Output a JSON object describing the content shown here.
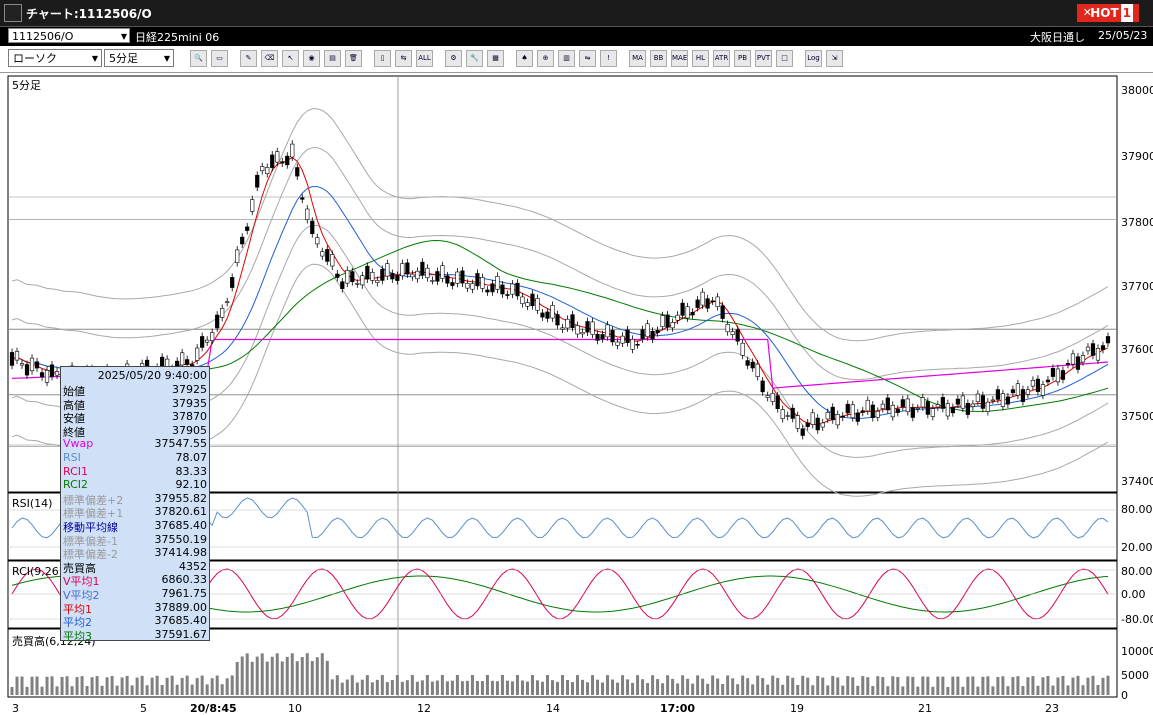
{
  "window": {
    "title": "チャート:1112506/O",
    "hot_label": "HOT",
    "hot_number": "1"
  },
  "infobar": {
    "symbol": "1112506/O",
    "instrument": "日経225mini 06",
    "exchange": "大阪日通し",
    "date": "25/05/23"
  },
  "toolbar": {
    "chart_type": "ローソク",
    "interval": "5分足",
    "buttons": [
      {
        "name": "search-tool",
        "glyph": "🔍"
      },
      {
        "name": "window-tool",
        "glyph": "▭"
      },
      {
        "name": "pen-tool",
        "glyph": "✎"
      },
      {
        "name": "eraser-tool",
        "glyph": "⌫"
      },
      {
        "name": "cursor-tool",
        "glyph": "↖"
      },
      {
        "name": "fill-tool",
        "glyph": "◉"
      },
      {
        "name": "document-tool",
        "glyph": "▤"
      },
      {
        "name": "trash-tool",
        "glyph": "🗑"
      },
      {
        "name": "candle-tool",
        "glyph": "▯"
      },
      {
        "name": "arrow-tool",
        "glyph": "⇆"
      },
      {
        "name": "all-tool",
        "glyph": "ALL"
      },
      {
        "name": "gear-tool",
        "glyph": "⚙"
      },
      {
        "name": "wrench-tool",
        "glyph": "🔧"
      },
      {
        "name": "color-tool",
        "glyph": "▦"
      },
      {
        "name": "indicator-tool",
        "glyph": "♠"
      },
      {
        "name": "zoom-tool",
        "glyph": "⊕"
      },
      {
        "name": "bar-tool",
        "glyph": "▥"
      },
      {
        "name": "split-tool",
        "glyph": "⇋"
      },
      {
        "name": "info-tool",
        "glyph": "!"
      },
      {
        "name": "ma-tool",
        "glyph": "MA"
      },
      {
        "name": "bb-tool",
        "glyph": "BB"
      },
      {
        "name": "mae-tool",
        "glyph": "MAE"
      },
      {
        "name": "hl-tool",
        "glyph": "HL"
      },
      {
        "name": "atr-tool",
        "glyph": "ATR"
      },
      {
        "name": "pb-tool",
        "glyph": "PB"
      },
      {
        "name": "pvt-tool",
        "glyph": "PVT"
      },
      {
        "name": "box-tool",
        "glyph": "□"
      },
      {
        "name": "log-tool",
        "glyph": "Log"
      },
      {
        "name": "export-tool",
        "glyph": "⇲"
      }
    ]
  },
  "panes": {
    "main_label": "5分足",
    "rsi_label": "RSI(14)",
    "rci_label": "RCI(9,26)",
    "volume_label": "売買高(6,12,24)",
    "price_ticks": [
      "38000",
      "37900",
      "37800",
      "37700",
      "37600",
      "37500",
      "37400"
    ],
    "rsi_ticks": [
      "80.00",
      "20.00"
    ],
    "rci_ticks": [
      "80.00",
      "0.00",
      "-80.00"
    ],
    "volume_ticks": [
      "10000",
      "5000",
      "0"
    ],
    "x_ticks": [
      "3",
      "5",
      "20/8:45",
      "10",
      "12",
      "14",
      "17:00",
      "19",
      "21",
      "23"
    ]
  },
  "info_panel": {
    "datetime": "2025/05/20 9:40:00",
    "rows": [
      {
        "label": "始値",
        "value": "37925",
        "color": "#000000"
      },
      {
        "label": "高値",
        "value": "37935",
        "color": "#000000"
      },
      {
        "label": "安値",
        "value": "37870",
        "color": "#000000"
      },
      {
        "label": "終値",
        "value": "37905",
        "color": "#000000"
      },
      {
        "label": "Vwap",
        "value": "37547.55",
        "color": "#e000e0"
      },
      {
        "label": "RSI",
        "value": "78.07",
        "color": "#5a8fd0"
      },
      {
        "label": "RCI1",
        "value": "83.33",
        "color": "#e0005a"
      },
      {
        "label": "RCI2",
        "value": "92.10",
        "color": "#007a00"
      },
      {
        "label": "標準偏差+2",
        "value": "37955.82",
        "color": "#9a9a9a"
      },
      {
        "label": "標準偏差+1",
        "value": "37820.61",
        "color": "#9a9a9a"
      },
      {
        "label": "移動平均線",
        "value": "37685.40",
        "color": "#0000a0"
      },
      {
        "label": "標準偏差-1",
        "value": "37550.19",
        "color": "#9a9a9a"
      },
      {
        "label": "標準偏差-2",
        "value": "37414.98",
        "color": "#9a9a9a"
      },
      {
        "label": "売買高",
        "value": "4352",
        "color": "#000000"
      },
      {
        "label": "V平均1",
        "value": "6860.33",
        "color": "#e0005a"
      },
      {
        "label": "V平均2",
        "value": "7961.75",
        "color": "#4a6ad0"
      },
      {
        "label": "平均1",
        "value": "37889.00",
        "color": "#e00000"
      },
      {
        "label": "平均2",
        "value": "37685.40",
        "color": "#2060d0"
      },
      {
        "label": "平均3",
        "value": "37591.67",
        "color": "#007a00"
      }
    ]
  },
  "colors": {
    "ma1": "#e00000",
    "ma2": "#2060d0",
    "ma3": "#007a00",
    "vwap": "#e000e0",
    "band": "#a8a8a8",
    "rsi": "#5a8fd0",
    "rci1": "#e0005a",
    "rci2": "#007a00"
  }
}
